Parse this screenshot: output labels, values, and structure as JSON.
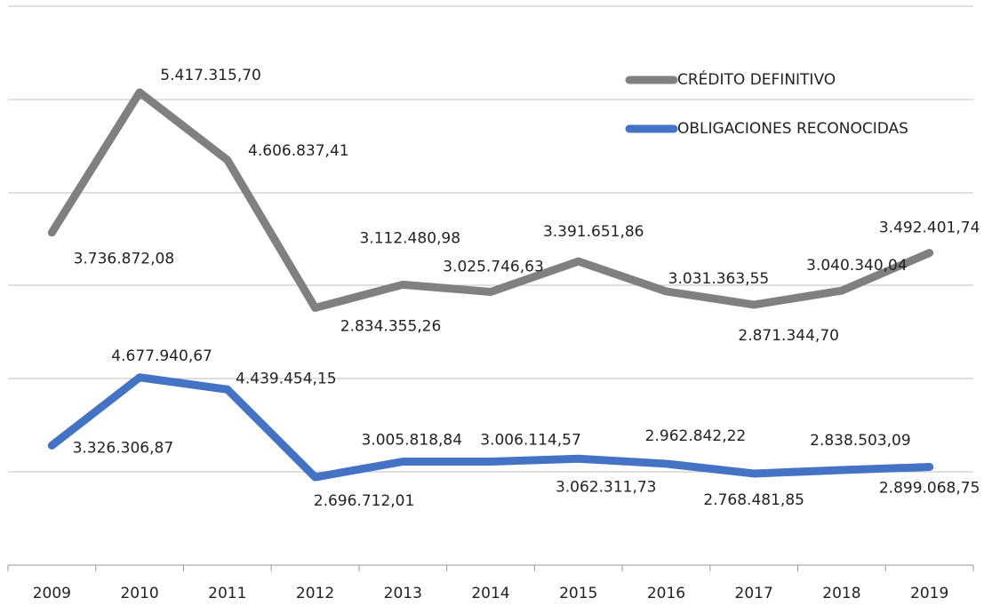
{
  "chart_data": {
    "type": "line",
    "categories": [
      "2009",
      "2010",
      "2011",
      "2012",
      "2013",
      "2014",
      "2015",
      "2016",
      "2017",
      "2018",
      "2019"
    ],
    "series": [
      {
        "name": "CRÉDITO DEFINITIVO",
        "color": "#808080",
        "values": [
          3736872.08,
          5417315.7,
          4606837.41,
          2834355.26,
          3112480.98,
          3025746.63,
          3391651.86,
          3031363.55,
          2871344.7,
          3040340.04,
          3492401.74
        ],
        "value_labels": [
          "3.736.872,08",
          "5.417.315,70",
          "4.606.837,41",
          "2.834.355,26",
          "3.112.480,98",
          "3.025.746,63",
          "3.391.651,86",
          "3.031.363,55",
          "2.871.344,70",
          "3.040.340,04",
          "3.492.401,74"
        ]
      },
      {
        "name": "OBLIGACIONES RECONOCIDAS",
        "color": "#4472c4",
        "axis": "y2",
        "values": [
          3326306.87,
          4677940.67,
          4439454.15,
          2696712.01,
          3005818.84,
          3006114.57,
          3062311.73,
          2962842.22,
          2768481.85,
          2838503.09,
          2899068.75
        ],
        "value_labels": [
          "3.326.306,87",
          "4.677.940,67",
          "4.439.454,15",
          "2.696.712,01",
          "3.005.818,84",
          "3.006.114,57",
          "3.062.311,73",
          "2.962.842,22",
          "2.768.481,85",
          "2.838.503,09",
          "2.899.068,75"
        ]
      }
    ],
    "ylim": [
      -250000,
      6450000
    ],
    "y2lim": [
      950000,
      12050000
    ],
    "legend": "top-right"
  }
}
